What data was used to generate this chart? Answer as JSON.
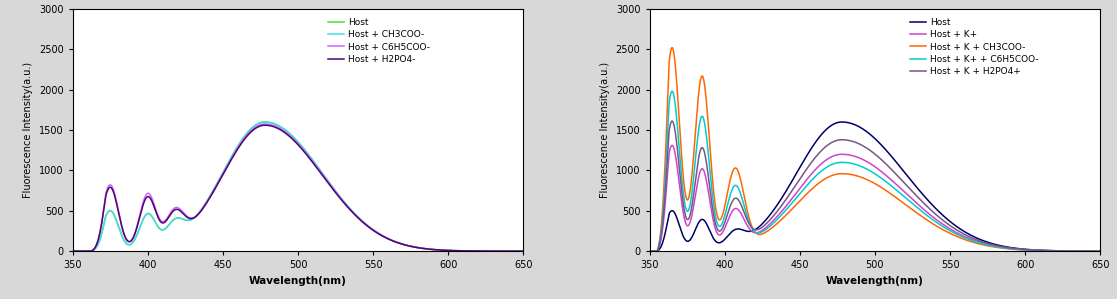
{
  "left_chart": {
    "xlabel": "Wavelength(nm)",
    "ylabel": "Fluorescence Intensity(a.u.)",
    "xlim": [
      350,
      650
    ],
    "ylim": [
      0,
      3000
    ],
    "yticks": [
      0,
      500,
      1000,
      1500,
      2000,
      2500,
      3000
    ],
    "xticks": [
      350,
      400,
      450,
      500,
      550,
      600,
      650
    ],
    "series": [
      {
        "label": "Host",
        "color": "#44dd44",
        "lw": 1.1,
        "p1y": 500,
        "p2y": 430,
        "p3y": 1600
      },
      {
        "label": "Host + CH3COO-",
        "color": "#44dddd",
        "lw": 1.1,
        "p1y": 500,
        "p2y": 430,
        "p3y": 1600
      },
      {
        "label": "Host + C6H5COO-",
        "color": "#cc66ff",
        "lw": 1.1,
        "p1y": 820,
        "p2y": 680,
        "p3y": 1575
      },
      {
        "label": "Host + H2PO4-",
        "color": "#550077",
        "lw": 1.1,
        "p1y": 790,
        "p2y": 640,
        "p3y": 1560
      }
    ]
  },
  "right_chart": {
    "xlabel": "Wavelength(nm)",
    "ylabel": "Fluorescence Intensity(a.u.)",
    "xlim": [
      350,
      650
    ],
    "ylim": [
      0,
      3000
    ],
    "yticks": [
      0,
      500,
      1000,
      1500,
      2000,
      2500,
      3000
    ],
    "xticks": [
      350,
      400,
      450,
      500,
      550,
      600,
      650
    ],
    "series": [
      {
        "label": "Host",
        "color": "#000066",
        "lw": 1.1,
        "p1y": 500,
        "p2y": 380,
        "p3y": 1600
      },
      {
        "label": "Host + K+",
        "color": "#cc44cc",
        "lw": 1.1,
        "p1y": 1310,
        "p2y": 1010,
        "p3y": 1200
      },
      {
        "label": "Host + K + CH3COO-",
        "color": "#ff6600",
        "lw": 1.1,
        "p1y": 2520,
        "p2y": 2160,
        "p3y": 960
      },
      {
        "label": "Host + K+ + C6H5COO-",
        "color": "#00cccc",
        "lw": 1.1,
        "p1y": 1980,
        "p2y": 1660,
        "p3y": 1100
      },
      {
        "label": "Host + K + H2PO4+",
        "color": "#775588",
        "lw": 1.1,
        "p1y": 1610,
        "p2y": 1270,
        "p3y": 1380
      }
    ]
  }
}
